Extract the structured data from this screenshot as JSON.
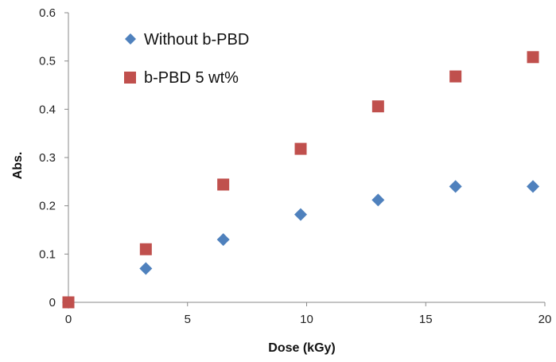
{
  "chart_data": {
    "type": "scatter",
    "xlabel": "Dose (kGy)",
    "ylabel": "Abs.",
    "xlim": [
      0,
      20
    ],
    "ylim": [
      0,
      0.6
    ],
    "xticks": [
      "0",
      "5",
      "10",
      "15",
      "20"
    ],
    "yticks": [
      "0",
      "0.1",
      "0.2",
      "0.3",
      "0.4",
      "0.5",
      "0.6"
    ],
    "grid": false,
    "legend_position": "top-left",
    "series": [
      {
        "name": "Without b-PBD",
        "marker": "diamond",
        "color": "#4f81bd",
        "x": [
          0,
          3.25,
          6.5,
          9.75,
          13.0,
          16.25,
          19.5
        ],
        "y": [
          0.0,
          0.07,
          0.13,
          0.182,
          0.212,
          0.24,
          0.24
        ]
      },
      {
        "name": "b-PBD 5 wt%",
        "marker": "square",
        "color": "#c0504d",
        "x": [
          0,
          3.25,
          6.5,
          9.75,
          13.0,
          16.25,
          19.5
        ],
        "y": [
          0.0,
          0.11,
          0.244,
          0.318,
          0.406,
          0.468,
          0.508
        ]
      }
    ]
  }
}
